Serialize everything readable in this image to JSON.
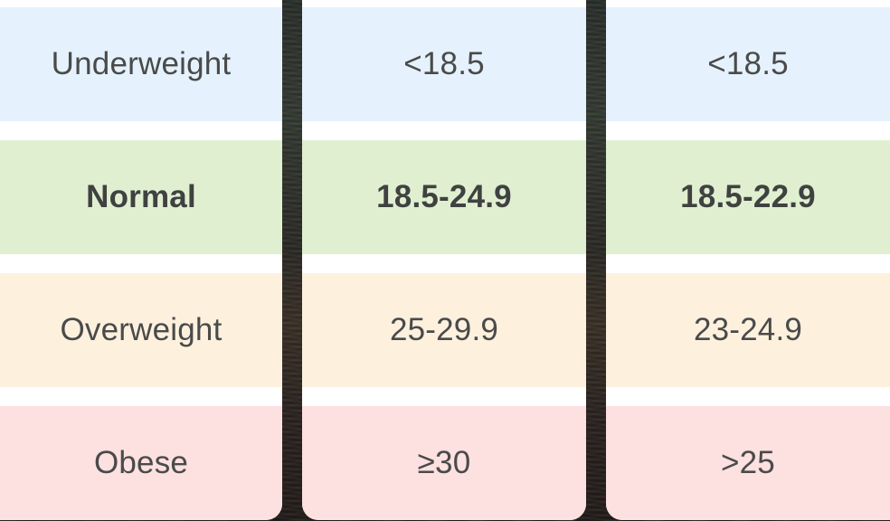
{
  "table": {
    "rows": [
      {
        "category": "Underweight",
        "range_a": "<18.5",
        "range_b": "<18.5"
      },
      {
        "category": "Normal",
        "range_a": "18.5-24.9",
        "range_b": "18.5-22.9"
      },
      {
        "category": "Overweight",
        "range_a": "25-29.9",
        "range_b": "23-24.9"
      },
      {
        "category": "Obese",
        "range_a": "≥30",
        "range_b": ">25"
      }
    ]
  },
  "colors": {
    "underweight": "#e5f2fd",
    "normal": "#e1efd1",
    "overweight": "#fdf1de",
    "obese": "#fde0e0"
  }
}
